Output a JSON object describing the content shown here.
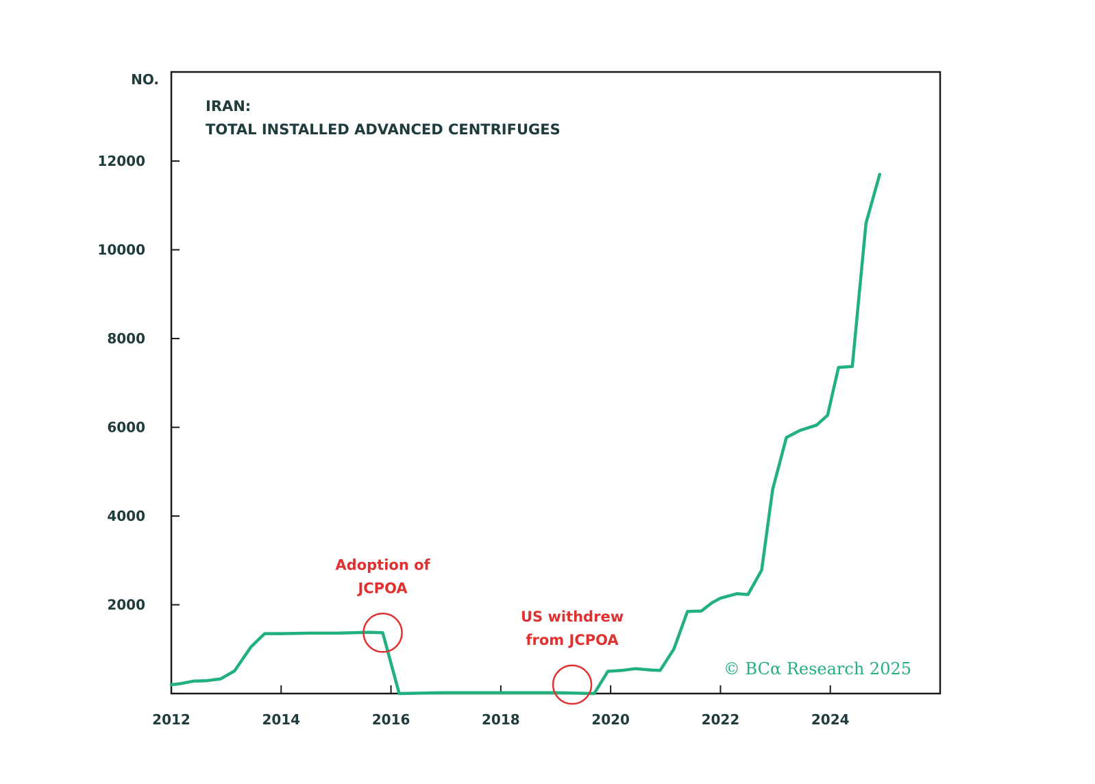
{
  "chart_data": {
    "type": "line",
    "title_lines": [
      "IRAN:",
      "TOTAL INSTALLED ADVANCED CENTRIFUGES"
    ],
    "ylabel": "NO.",
    "xlabel": "",
    "xlim": [
      2012,
      2026
    ],
    "ylim": [
      0,
      14000
    ],
    "xticks": [
      2012,
      2014,
      2016,
      2018,
      2020,
      2022,
      2024
    ],
    "xtick_labels": [
      "2012",
      "2014",
      "2016",
      "2018",
      "2020",
      "2022",
      "2024"
    ],
    "yticks": [
      2000,
      4000,
      6000,
      8000,
      10000,
      12000
    ],
    "ytick_labels": [
      "2000",
      "4000",
      "6000",
      "8000",
      "10000",
      "12000"
    ],
    "grid": false,
    "series": [
      {
        "name": "Total installed advanced centrifuges",
        "color": "#22b07d",
        "x": [
          2012.0,
          2012.15,
          2012.4,
          2012.65,
          2012.9,
          2013.15,
          2013.45,
          2013.7,
          2014.0,
          2014.5,
          2015.0,
          2015.3,
          2015.6,
          2015.85,
          2016.15,
          2017.0,
          2018.0,
          2019.0,
          2019.7,
          2019.95,
          2020.2,
          2020.45,
          2020.75,
          2020.9,
          2021.15,
          2021.4,
          2021.65,
          2021.85,
          2022.0,
          2022.3,
          2022.5,
          2022.75,
          2022.95,
          2023.2,
          2023.45,
          2023.75,
          2023.95,
          2024.15,
          2024.4,
          2024.65,
          2024.9
        ],
        "values": [
          200,
          220,
          280,
          290,
          330,
          510,
          1050,
          1350,
          1350,
          1360,
          1360,
          1370,
          1380,
          1370,
          0,
          20,
          20,
          20,
          0,
          500,
          520,
          560,
          530,
          520,
          1000,
          1850,
          1860,
          2050,
          2150,
          2250,
          2230,
          2780,
          4600,
          5770,
          5930,
          6050,
          6270,
          7350,
          7370,
          10600,
          11700
        ]
      }
    ],
    "annotations": [
      {
        "lines": [
          "Adoption of",
          "JCPOA"
        ],
        "x": 2015.85,
        "y": 1370,
        "color": "#e03131"
      },
      {
        "lines": [
          "US withdrew",
          "from JCPOA"
        ],
        "x": 2019.3,
        "y": 200,
        "color": "#e03131"
      }
    ],
    "credit": {
      "prefix": "© BC",
      "alpha": "α",
      "suffix": " Research 2025",
      "color": "#22b07d"
    }
  }
}
